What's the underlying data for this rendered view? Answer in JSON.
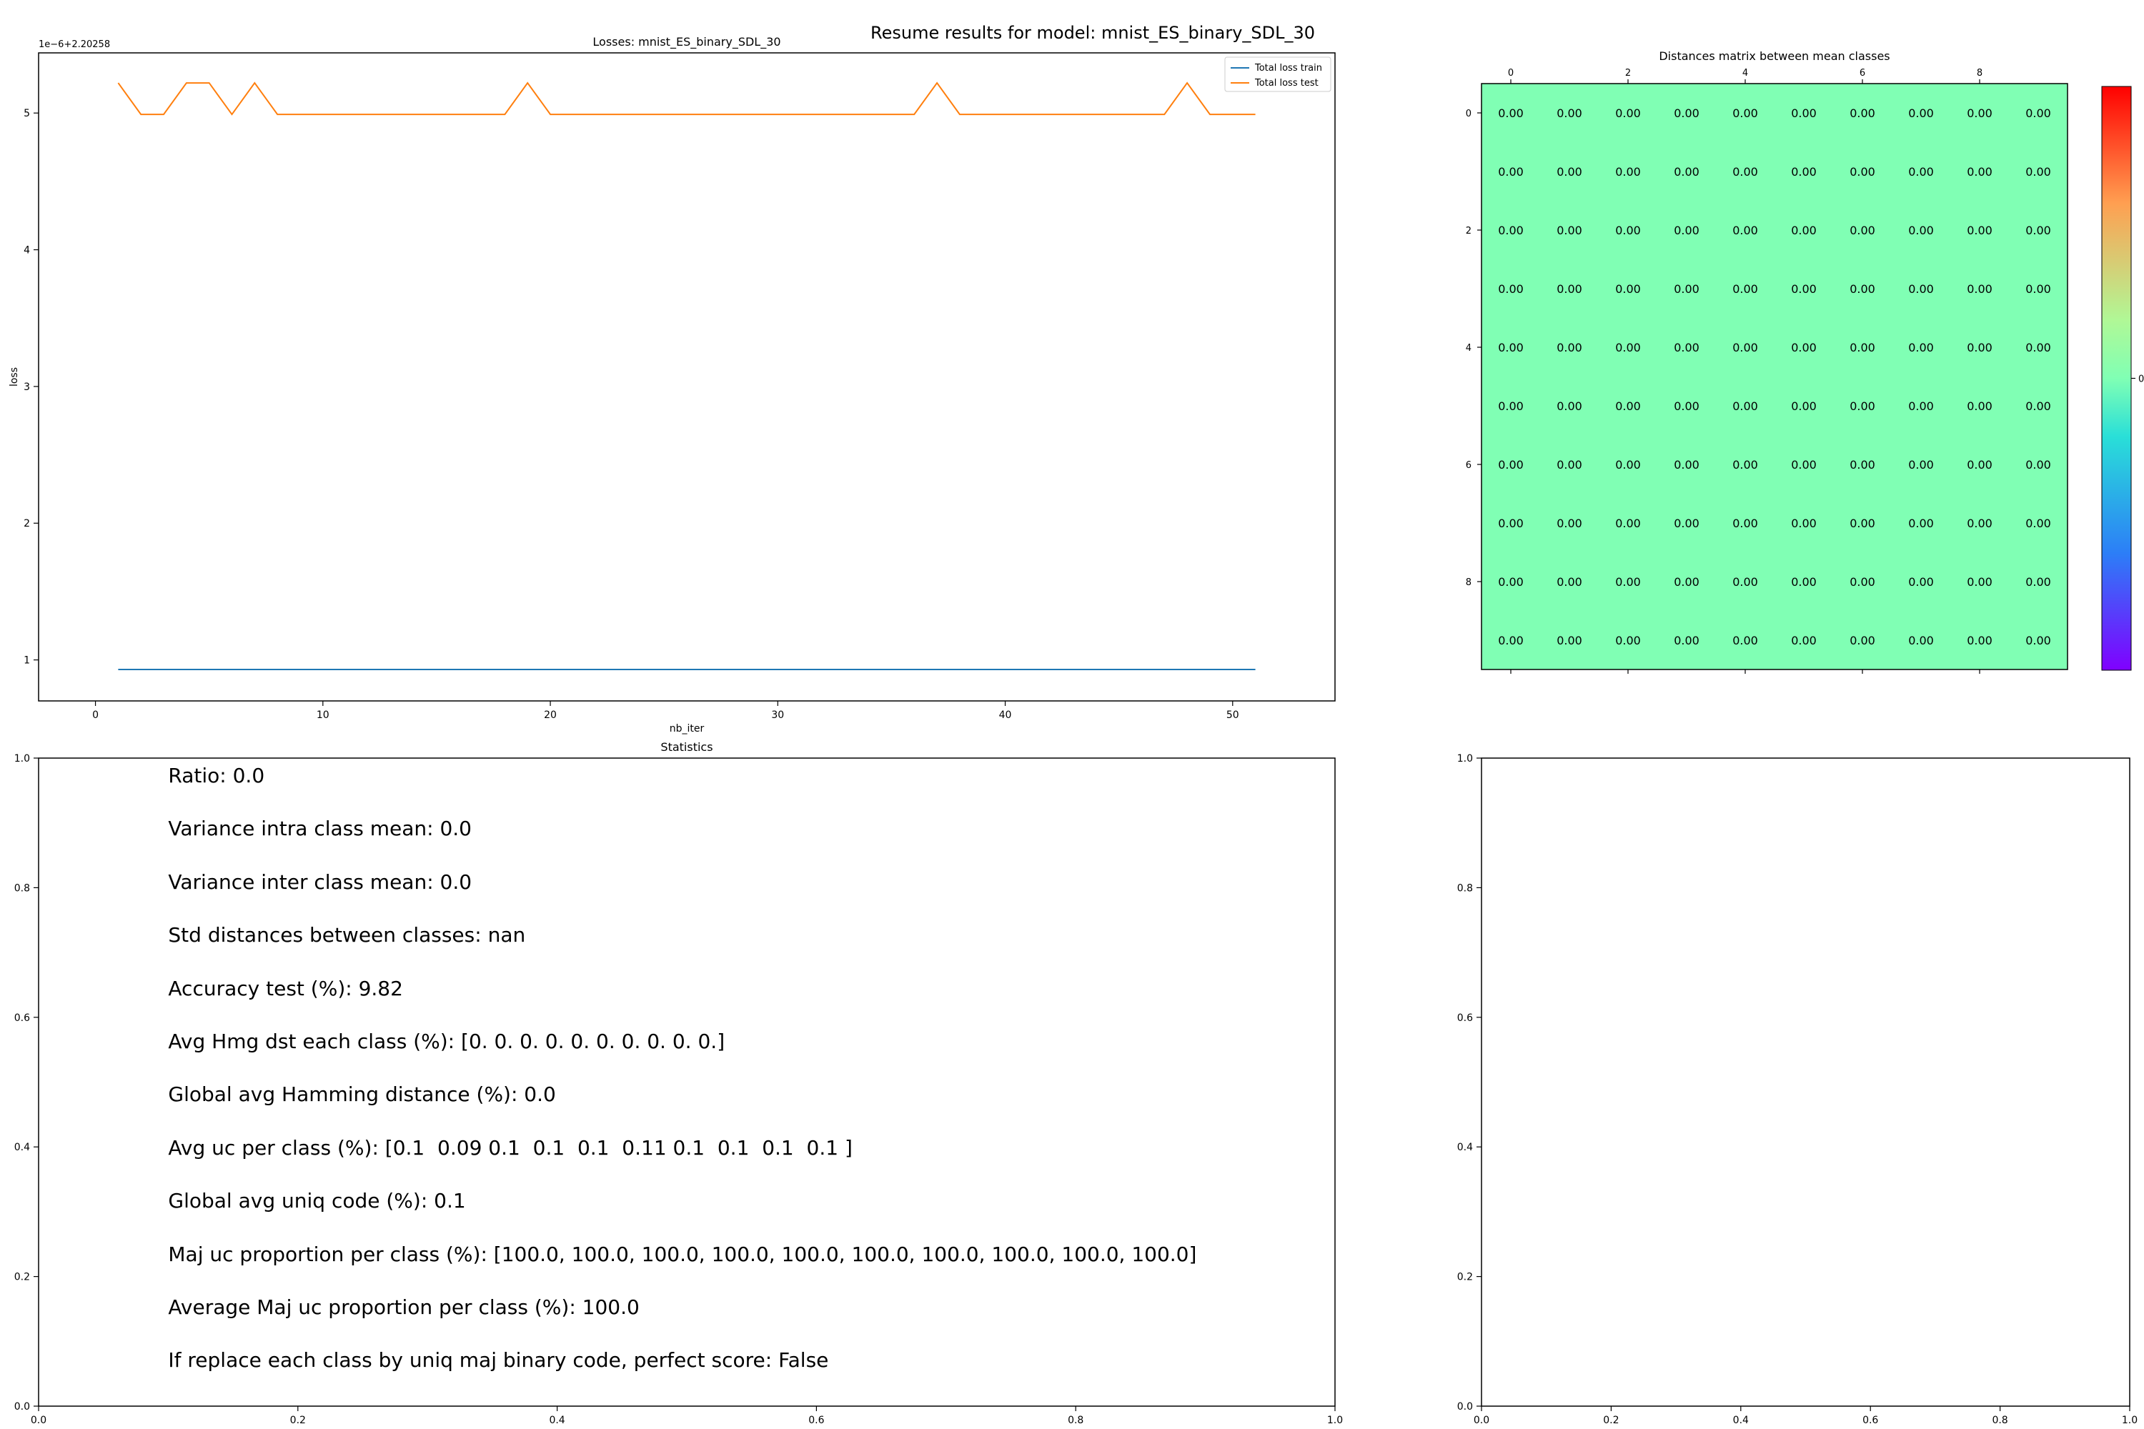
{
  "suptitle": "Resume results for model: mnist_ES_binary_SDL_30",
  "chart_data": [
    {
      "type": "line",
      "title": "Losses: mnist_ES_binary_SDL_30",
      "xlabel": "nb_iter",
      "ylabel": "loss",
      "offset_label": "1e−6+2.20258",
      "xlim": [
        -2.5,
        54.5
      ],
      "ylim": [
        0.7,
        5.44
      ],
      "xticks": [
        0,
        10,
        20,
        30,
        40,
        50
      ],
      "yticks": [
        1,
        2,
        3,
        4,
        5
      ],
      "legend_position": "top-right",
      "x": [
        1,
        2,
        3,
        4,
        5,
        6,
        7,
        8,
        9,
        10,
        11,
        12,
        13,
        14,
        15,
        16,
        17,
        18,
        19,
        20,
        21,
        22,
        23,
        24,
        25,
        26,
        27,
        28,
        29,
        30,
        31,
        32,
        33,
        34,
        35,
        36,
        37,
        38,
        39,
        40,
        41,
        42,
        43,
        44,
        45,
        46,
        47,
        48,
        49,
        50,
        51
      ],
      "series": [
        {
          "name": "Total loss train",
          "color": "#1f77b4",
          "values": [
            0.93,
            0.93,
            0.93,
            0.93,
            0.93,
            0.93,
            0.93,
            0.93,
            0.93,
            0.93,
            0.93,
            0.93,
            0.93,
            0.93,
            0.93,
            0.93,
            0.93,
            0.93,
            0.93,
            0.93,
            0.93,
            0.93,
            0.93,
            0.93,
            0.93,
            0.93,
            0.93,
            0.93,
            0.93,
            0.93,
            0.93,
            0.93,
            0.93,
            0.93,
            0.93,
            0.93,
            0.93,
            0.93,
            0.93,
            0.93,
            0.93,
            0.93,
            0.93,
            0.93,
            0.93,
            0.93,
            0.93,
            0.93,
            0.93,
            0.93,
            0.93
          ]
        },
        {
          "name": "Total loss test",
          "color": "#ff7f0e",
          "values": [
            5.22,
            4.99,
            4.99,
            5.22,
            5.22,
            4.99,
            5.22,
            4.99,
            4.99,
            4.99,
            4.99,
            4.99,
            4.99,
            4.99,
            4.99,
            4.99,
            4.99,
            4.99,
            5.22,
            4.99,
            4.99,
            4.99,
            4.99,
            4.99,
            4.99,
            4.99,
            4.99,
            4.99,
            4.99,
            4.99,
            4.99,
            4.99,
            4.99,
            4.99,
            4.99,
            4.99,
            5.22,
            4.99,
            4.99,
            4.99,
            4.99,
            4.99,
            4.99,
            4.99,
            4.99,
            4.99,
            4.99,
            5.22,
            4.99,
            4.99,
            4.99
          ]
        }
      ]
    },
    {
      "type": "heatmap",
      "title": "Distances matrix between mean classes",
      "rows": 10,
      "cols": 10,
      "cell_value": 0.0,
      "cell_label": "0.00",
      "cell_color": "#80ffb4",
      "xticks": [
        "0",
        "2",
        "4",
        "6",
        "8"
      ],
      "yticks": [
        "0",
        "2",
        "4",
        "6",
        "8"
      ],
      "colorbar_ticks": [
        "0"
      ],
      "colormap": "rainbow"
    },
    {
      "type": "table",
      "title": "Statistics",
      "xlim": [
        0,
        1
      ],
      "ylim": [
        0,
        1
      ],
      "ticks": [
        "0.0",
        "0.2",
        "0.4",
        "0.6",
        "0.8",
        "1.0"
      ],
      "lines": [
        "Ratio: 0.0",
        "Variance intra class mean: 0.0",
        "Variance inter class mean: 0.0",
        "Std distances between classes: nan",
        "Accuracy test (%): 9.82",
        "Avg Hmg dst each class (%): [0. 0. 0. 0. 0. 0. 0. 0. 0. 0.]",
        "Global avg Hamming distance (%): 0.0",
        "Avg uc per class (%): [0.1  0.09 0.1  0.1  0.1  0.11 0.1  0.1  0.1  0.1 ]",
        "Global avg uniq code (%): 0.1",
        "Maj uc proportion per class (%): [100.0, 100.0, 100.0, 100.0, 100.0, 100.0, 100.0, 100.0, 100.0, 100.0]",
        "Average Maj uc proportion per class (%): 100.0",
        "If replace each class by uniq maj binary code, perfect score: False"
      ]
    },
    {
      "type": "scatter",
      "title": "",
      "xlim": [
        0,
        1
      ],
      "ylim": [
        0,
        1
      ],
      "ticks": [
        "0.0",
        "0.2",
        "0.4",
        "0.6",
        "0.8",
        "1.0"
      ],
      "values": []
    }
  ]
}
